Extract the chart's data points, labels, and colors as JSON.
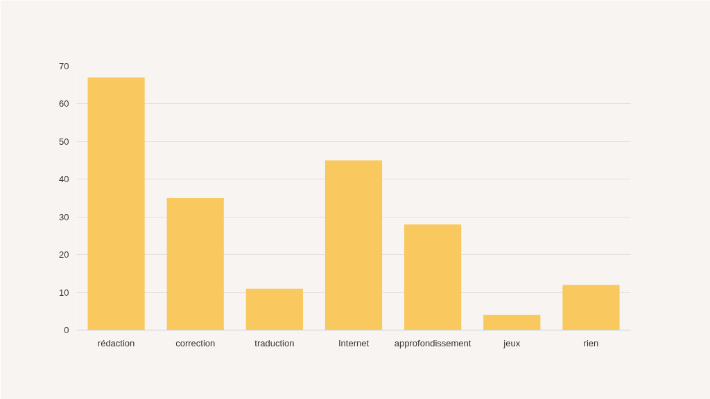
{
  "chart_data": {
    "type": "bar",
    "categories": [
      "rédaction",
      "correction",
      "traduction",
      "Internet",
      "approfondissement",
      "jeux",
      "rien"
    ],
    "values": [
      67,
      35,
      11,
      45,
      28,
      4,
      12
    ],
    "color": "#f9c85e",
    "ylim": [
      0,
      70
    ],
    "yticks": [
      0,
      10,
      20,
      30,
      40,
      50,
      60,
      70
    ],
    "grid": "y"
  }
}
